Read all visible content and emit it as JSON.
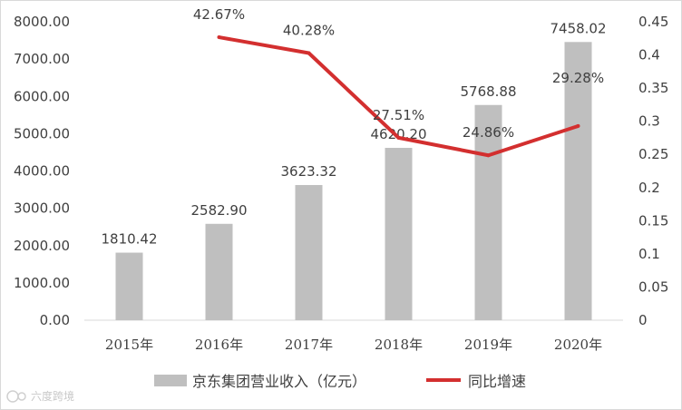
{
  "chart_data": {
    "type": "bar",
    "categories": [
      "2015年",
      "2016年",
      "2017年",
      "2018年",
      "2019年",
      "2020年"
    ],
    "series": [
      {
        "name": "京东集团营业收入（亿元）",
        "type": "bar",
        "axis": "left",
        "color": "#bfbfbf",
        "values": [
          1810.42,
          2582.9,
          3623.32,
          4620.2,
          5768.88,
          7458.02
        ],
        "labels": [
          "1810.42",
          "2582.90",
          "3623.32",
          "4620.20",
          "5768.88",
          "7458.02"
        ]
      },
      {
        "name": "同比增速",
        "type": "line",
        "axis": "right",
        "color": "#d32f2f",
        "values": [
          null,
          0.4267,
          0.4028,
          0.2751,
          0.2486,
          0.2928
        ],
        "labels": [
          "",
          "42.67%",
          "40.28%",
          "27.51%",
          "24.86%",
          "29.28%"
        ]
      }
    ],
    "y_left": {
      "range": [
        0,
        8000
      ],
      "ticks": [
        "0.00",
        "1000.00",
        "2000.00",
        "3000.00",
        "4000.00",
        "5000.00",
        "6000.00",
        "7000.00",
        "8000.00"
      ]
    },
    "y_right": {
      "range": [
        0,
        0.45
      ],
      "ticks": [
        "0",
        "0.05",
        "0.1",
        "0.15",
        "0.2",
        "0.25",
        "0.3",
        "0.35",
        "0.4",
        "0.45"
      ]
    },
    "grid": false,
    "legend_position": "bottom"
  },
  "watermark": {
    "text": "六度跨境",
    "icon": "logo-icon"
  }
}
